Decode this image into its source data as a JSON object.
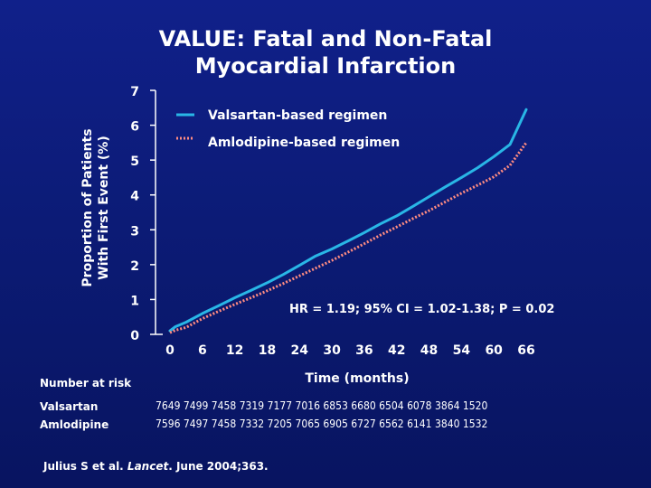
{
  "slide": {
    "title_line1": "VALUE: Fatal and Non-Fatal",
    "title_line2": "Myocardial Infarction"
  },
  "chart_data": {
    "type": "line",
    "title": "VALUE: Fatal and Non-Fatal Myocardial Infarction",
    "ylabel_line1": "Proportion of Patients",
    "ylabel_line2": "With First Event (%)",
    "xlabel": "Time (months)",
    "ylim": [
      0,
      7
    ],
    "yticks": [
      "0",
      "1",
      "2",
      "3",
      "4",
      "5",
      "6",
      "7"
    ],
    "xlim": [
      0,
      66
    ],
    "xticks": [
      "0",
      "6",
      "12",
      "18",
      "24",
      "30",
      "36",
      "42",
      "48",
      "54",
      "60",
      "66"
    ],
    "annotation": "HR = 1.19; 95% CI = 1.02-1.38; P = 0.02",
    "legend_position": "top-left",
    "series": [
      {
        "name": "Valsartan-based regimen",
        "color": "#29b6e6",
        "style": "solid",
        "x": [
          0,
          1,
          3,
          6,
          9,
          12,
          15,
          18,
          21,
          24,
          27,
          30,
          33,
          36,
          39,
          42,
          45,
          48,
          51,
          54,
          57,
          60,
          63,
          66
        ],
        "y": [
          0.1,
          0.22,
          0.35,
          0.6,
          0.82,
          1.05,
          1.26,
          1.48,
          1.72,
          1.98,
          2.25,
          2.45,
          2.68,
          2.92,
          3.17,
          3.4,
          3.67,
          3.95,
          4.23,
          4.5,
          4.78,
          5.1,
          5.45,
          6.45
        ]
      },
      {
        "name": "Amlodipine-based regimen",
        "color": "#ff8c82",
        "style": "dotted",
        "x": [
          0,
          1,
          3,
          6,
          9,
          12,
          15,
          18,
          21,
          24,
          27,
          30,
          33,
          36,
          39,
          42,
          45,
          48,
          51,
          54,
          57,
          60,
          63,
          66
        ],
        "y": [
          0.05,
          0.12,
          0.2,
          0.45,
          0.66,
          0.86,
          1.05,
          1.25,
          1.46,
          1.68,
          1.9,
          2.12,
          2.36,
          2.6,
          2.85,
          3.08,
          3.32,
          3.55,
          3.8,
          4.05,
          4.28,
          4.52,
          4.85,
          5.5
        ]
      }
    ]
  },
  "risk_table": {
    "header": "Number at risk",
    "rows": [
      {
        "label": "Valsartan",
        "values": "7649 7499 7458 7319 7177 7016 6853 6680 6504 6078 3864 1520"
      },
      {
        "label": "Amlodipine",
        "values": "7596 7497 7458 7332 7205 7065 6905 6727 6562 6141 3840 1532"
      }
    ]
  },
  "citation": {
    "before": "Julius S et al. ",
    "journal": "Lancet",
    "after": ". June 2004;363."
  }
}
